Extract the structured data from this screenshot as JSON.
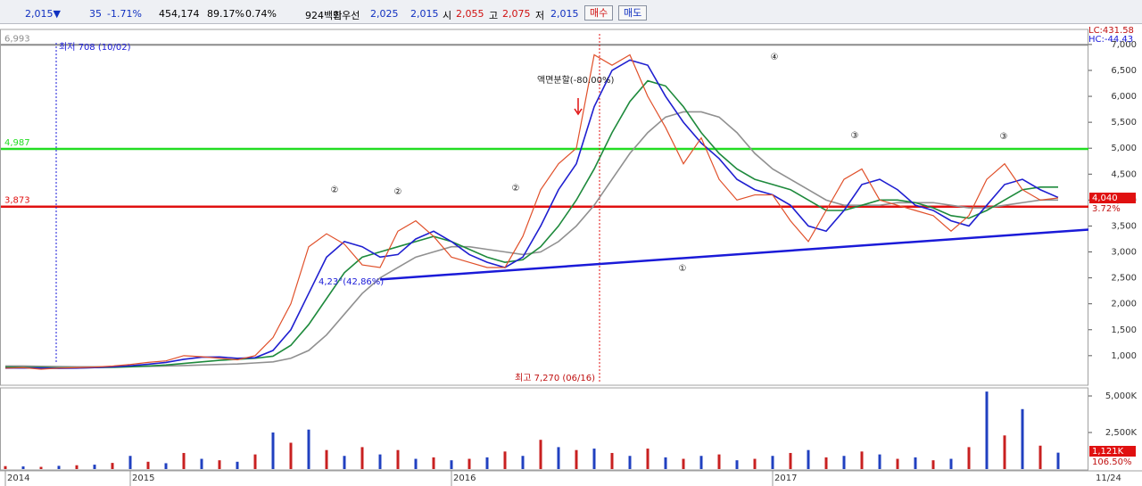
{
  "toolbar": {
    "items": [
      "2,015▼",
      "35",
      "-1.71%",
      "454,174",
      "89.17%",
      "0.74%",
      "924백만",
      "최우선",
      "2,025",
      "2,015",
      "시",
      "2,055",
      "고",
      "2,075",
      "저",
      "2,015"
    ],
    "buttons": [
      "매수",
      "매도"
    ]
  },
  "chart_data": {
    "type": "line",
    "categories": [
      "2014",
      null,
      null,
      null,
      null,
      null,
      null,
      "2015",
      null,
      null,
      null,
      null,
      null,
      null,
      null,
      null,
      null,
      null,
      null,
      null,
      null,
      null,
      null,
      null,
      null,
      "2016",
      null,
      null,
      null,
      null,
      null,
      null,
      null,
      null,
      null,
      null,
      null,
      null,
      null,
      null,
      null,
      null,
      null,
      "2017",
      null,
      null,
      null,
      null,
      null,
      null,
      null,
      null,
      null,
      null,
      null,
      null,
      null,
      null,
      null,
      null
    ],
    "x_end_label": "11/24",
    "series": [
      {
        "color": "#e0502a",
        "values": [
          760,
          770,
          740,
          760,
          770,
          780,
          800,
          830,
          870,
          900,
          1000,
          980,
          950,
          920,
          1000,
          1350,
          2000,
          3100,
          3350,
          3150,
          2750,
          2700,
          3400,
          3600,
          3300,
          2900,
          2800,
          2700,
          2700,
          3300,
          4200,
          4700,
          5000,
          6800,
          6600,
          6800,
          6000,
          5400,
          4700,
          5200,
          4400,
          4000,
          4100,
          4100,
          3600,
          3200,
          3800,
          4400,
          4600,
          4000,
          3900,
          3800,
          3700,
          3400,
          3700,
          4400,
          4700,
          4200,
          4000,
          4040
        ]
      },
      {
        "color": "#1f1fd0",
        "values": [
          760,
          765,
          760,
          755,
          760,
          770,
          785,
          805,
          835,
          870,
          930,
          970,
          975,
          950,
          960,
          1100,
          1500,
          2200,
          2900,
          3200,
          3100,
          2900,
          2950,
          3250,
          3400,
          3200,
          2950,
          2800,
          2700,
          2900,
          3500,
          4200,
          4700,
          5800,
          6500,
          6700,
          6600,
          6000,
          5500,
          5100,
          4800,
          4400,
          4200,
          4100,
          3900,
          3500,
          3400,
          3800,
          4300,
          4400,
          4200,
          3900,
          3800,
          3600,
          3500,
          3900,
          4300,
          4400,
          4200,
          4050
        ]
      },
      {
        "color": "#1e8a3c",
        "values": [
          780,
          775,
          770,
          765,
          765,
          770,
          775,
          785,
          800,
          820,
          850,
          880,
          910,
          930,
          950,
          990,
          1200,
          1600,
          2100,
          2600,
          2900,
          3000,
          3100,
          3200,
          3300,
          3200,
          3050,
          2900,
          2800,
          2850,
          3100,
          3500,
          4000,
          4600,
          5300,
          5900,
          6300,
          6200,
          5800,
          5300,
          4900,
          4600,
          4400,
          4300,
          4200,
          4000,
          3800,
          3800,
          3900,
          4000,
          4000,
          3950,
          3850,
          3700,
          3650,
          3800,
          4000,
          4200,
          4250,
          4250
        ]
      },
      {
        "color": "#909090",
        "values": [
          800,
          800,
          795,
          790,
          785,
          785,
          785,
          790,
          795,
          800,
          810,
          820,
          830,
          840,
          860,
          880,
          950,
          1100,
          1400,
          1800,
          2200,
          2500,
          2700,
          2900,
          3000,
          3100,
          3100,
          3050,
          3000,
          2950,
          3000,
          3200,
          3500,
          3900,
          4400,
          4900,
          5300,
          5600,
          5700,
          5700,
          5600,
          5300,
          4900,
          4600,
          4400,
          4200,
          4000,
          3900,
          3900,
          3900,
          3950,
          3950,
          3950,
          3900,
          3850,
          3850,
          3900,
          3950,
          4000,
          4000
        ]
      }
    ],
    "ylim": [
      430,
      7290
    ],
    "yticks": [
      {
        "value": 1000,
        "label": "1,000"
      },
      {
        "value": 1500,
        "label": "1,500"
      },
      {
        "value": 2000,
        "label": "2,000"
      },
      {
        "value": 2500,
        "label": "2,500"
      },
      {
        "value": 3000,
        "label": "3,000"
      },
      {
        "value": 3500,
        "label": "3,500"
      },
      {
        "value": 4000,
        "label": "4,000"
      },
      {
        "value": 4500,
        "label": "4,500"
      },
      {
        "value": 5000,
        "label": "5,000"
      },
      {
        "value": 5500,
        "label": "5,500"
      },
      {
        "value": 6000,
        "label": "6,000"
      },
      {
        "value": 6500,
        "label": "6,500"
      },
      {
        "value": 7000,
        "label": "7,000"
      }
    ],
    "levels": [
      {
        "value": 6993,
        "label": "6,993",
        "color": "#8c8c8c"
      },
      {
        "value": 4987,
        "label": "4,987",
        "color": "#22dd22"
      },
      {
        "value": 3873,
        "label": "3,873",
        "color": "#e01010"
      }
    ],
    "trendline": {
      "values": [
        2470,
        3430
      ],
      "color": "#1a1ad8"
    },
    "current": {
      "value": 4040,
      "label": "4,040",
      "change": "3.72%"
    },
    "lc": "LC:431.58",
    "hc": "HC:-44.43",
    "annotations": {
      "low": "최저 708 (10/02)",
      "high": "최고 7,270 (06/16)",
      "split": "액면분할(-80.00%)",
      "trend": "4,23°(42,86%)",
      "markers": [
        "②",
        "②",
        "②",
        "③",
        "③",
        "④",
        "①"
      ]
    },
    "volume": {
      "values": [
        200,
        180,
        150,
        220,
        260,
        300,
        420,
        900,
        500,
        400,
        1100,
        700,
        600,
        500,
        1000,
        2500,
        1800,
        2700,
        1300,
        900,
        1500,
        1000,
        1300,
        700,
        800,
        600,
        700,
        800,
        1200,
        900,
        2000,
        1500,
        1300,
        1400,
        1100,
        900,
        1400,
        800,
        700,
        900,
        1000,
        600,
        700,
        900,
        1100,
        1300,
        800,
        900,
        1200,
        1000,
        700,
        800,
        600,
        700,
        1500,
        5300,
        2300,
        4100,
        1600,
        1121
      ],
      "color": "#c82020",
      "color2": "#2040c0",
      "ylim": [
        0,
        5550
      ],
      "yticks": [
        {
          "value": 2500,
          "label": "2,500K"
        },
        {
          "value": 5000,
          "label": "5,000K"
        }
      ],
      "current": {
        "label": "1,121K",
        "change": "106.50%"
      }
    }
  }
}
